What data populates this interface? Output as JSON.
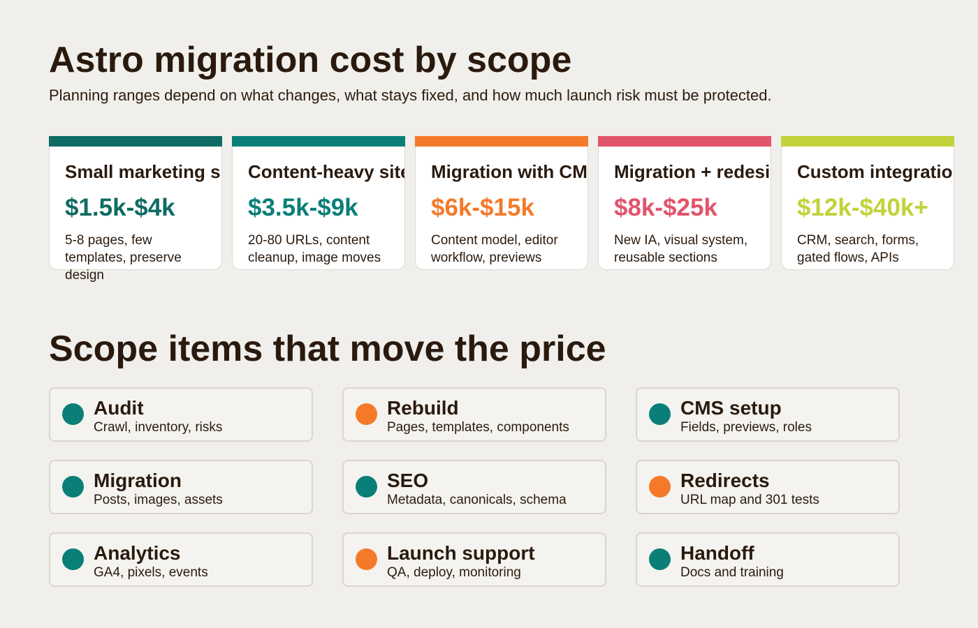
{
  "header": {
    "title": "Astro migration cost by scope",
    "subtitle": "Planning ranges depend on what changes, what stays fixed, and how much launch risk must be protected."
  },
  "tiers": [
    {
      "name": "Small marketing site",
      "price": "$1.5k-$4k",
      "description": "5-8 pages, few templates, preserve design",
      "color": "#0f6b63"
    },
    {
      "name": "Content-heavy site",
      "price": "$3.5k-$9k",
      "description": "20-80 URLs, content cleanup, image moves",
      "color": "#0a7f78"
    },
    {
      "name": "Migration with CMS",
      "price": "$6k-$15k",
      "description": "Content model, editor workflow, previews",
      "color": "#f47a2a"
    },
    {
      "name": "Migration + redesign",
      "price": "$8k-$25k",
      "description": "New IA, visual system, reusable sections",
      "color": "#e2546b"
    },
    {
      "name": "Custom integrations",
      "price": "$12k-$40k+",
      "description": "CRM, search, forms, gated flows, APIs",
      "color": "#c2d23a"
    }
  ],
  "scope": {
    "title": "Scope items that move the price",
    "items": [
      {
        "name": "Audit",
        "description": "Crawl, inventory, risks",
        "color": "#0a7f78"
      },
      {
        "name": "Rebuild",
        "description": "Pages, templates, components",
        "color": "#f47a2a"
      },
      {
        "name": "CMS setup",
        "description": "Fields, previews, roles",
        "color": "#0a7f78"
      },
      {
        "name": "Migration",
        "description": "Posts, images, assets",
        "color": "#0a7f78"
      },
      {
        "name": "SEO",
        "description": "Metadata, canonicals, schema",
        "color": "#0a7f78"
      },
      {
        "name": "Redirects",
        "description": "URL map and 301 tests",
        "color": "#f47a2a"
      },
      {
        "name": "Analytics",
        "description": "GA4, pixels, events",
        "color": "#0a7f78"
      },
      {
        "name": "Launch support",
        "description": "QA, deploy, monitoring",
        "color": "#f47a2a"
      },
      {
        "name": "Handoff",
        "description": "Docs and training",
        "color": "#0a7f78"
      }
    ]
  }
}
